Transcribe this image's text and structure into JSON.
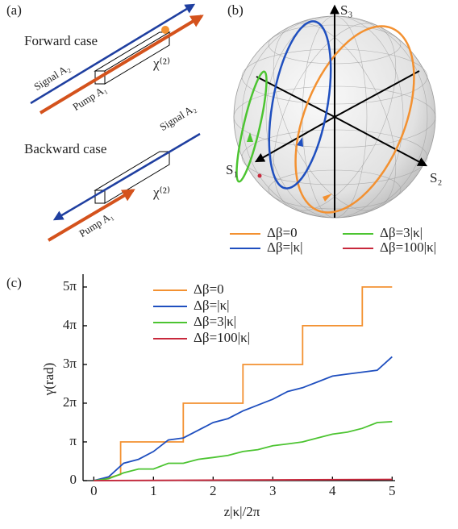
{
  "panel_a": {
    "label": "(a)",
    "forward": {
      "title": "Forward case",
      "signal": "Signal A₂",
      "pump": "Pump A₁",
      "crystal": "χ⁽²⁾"
    },
    "backward": {
      "title": "Backward case",
      "signal": "Signal A₂",
      "pump": "Pump A₁",
      "crystal": "χ⁽²⁾"
    }
  },
  "panel_b": {
    "label": "(b)",
    "axes": [
      "S₁",
      "S₂",
      "S₃"
    ],
    "legend": [
      {
        "label": "Δβ=0",
        "color": "#f39131"
      },
      {
        "label": "Δβ=3|κ|",
        "color": "#4cc431"
      },
      {
        "label": "Δβ=|κ|",
        "color": "#1f4fbf"
      },
      {
        "label": "Δβ=100|κ|",
        "color": "#c8283c"
      }
    ]
  },
  "chart_data": {
    "type": "line",
    "panel_label": "(c)",
    "x_label": "z|κ|/2π",
    "y_label": "γ(rad)",
    "xlim": [
      -0.18,
      5.05
    ],
    "ylim": [
      0,
      16.75
    ],
    "xticks": [
      0,
      1,
      2,
      3,
      4,
      5
    ],
    "yticks": [
      0,
      {
        "value": 3.1416,
        "label": "π"
      },
      {
        "value": 6.2832,
        "label": "2π"
      },
      {
        "value": 9.4248,
        "label": "3π"
      },
      {
        "value": 12.566,
        "label": "4π"
      },
      {
        "value": 15.708,
        "label": "5π"
      }
    ],
    "legend": "upper left",
    "series": [
      {
        "name": "Δβ=0",
        "color": "#f39131",
        "x": [
          0,
          0.3,
          0.45,
          0.45,
          1.5,
          1.5,
          2.5,
          2.5,
          3.5,
          3.5,
          4.5,
          4.5,
          5
        ],
        "values": [
          0,
          0.3,
          0.5,
          3.14,
          3.14,
          6.28,
          6.28,
          9.42,
          9.42,
          12.57,
          12.57,
          15.71,
          15.71
        ]
      },
      {
        "name": "Δβ=|κ|",
        "color": "#1f4fbf",
        "x": [
          0,
          0.25,
          0.5,
          0.75,
          1,
          1.25,
          1.5,
          1.75,
          2,
          2.25,
          2.5,
          2.75,
          3,
          3.25,
          3.5,
          3.75,
          4,
          4.25,
          4.5,
          4.75,
          5
        ],
        "values": [
          0,
          0.31,
          1.41,
          1.73,
          2.36,
          3.3,
          3.46,
          4.08,
          4.71,
          5.03,
          5.65,
          6.13,
          6.6,
          7.23,
          7.54,
          8.01,
          8.48,
          8.64,
          8.8,
          8.95,
          10.05
        ]
      },
      {
        "name": "Δβ=3|κ|",
        "color": "#4cc431",
        "x": [
          0,
          0.25,
          0.5,
          0.75,
          1,
          1.25,
          1.5,
          1.75,
          2,
          2.25,
          2.5,
          2.75,
          3,
          3.25,
          3.5,
          3.75,
          4,
          4.25,
          4.5,
          4.75,
          5
        ],
        "values": [
          0,
          0.16,
          0.63,
          0.94,
          0.94,
          1.41,
          1.41,
          1.73,
          1.88,
          2.04,
          2.36,
          2.51,
          2.83,
          2.98,
          3.14,
          3.46,
          3.77,
          3.93,
          4.24,
          4.71,
          4.78
        ]
      },
      {
        "name": "Δβ=100|κ|",
        "color": "#c8283c",
        "x": [
          0,
          5
        ],
        "values": [
          0,
          0.1
        ]
      }
    ]
  }
}
